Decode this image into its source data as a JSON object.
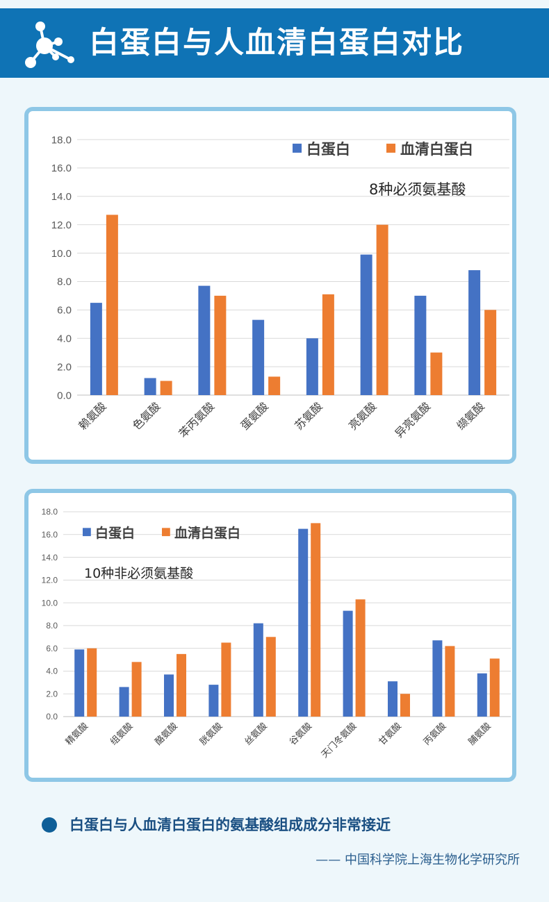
{
  "header": {
    "title": "白蛋白与人血清白蛋白对比"
  },
  "colors": {
    "series1": "#4472c4",
    "series2": "#ed7d31",
    "header_bg": "#0f73b5",
    "panel_border": "#8ec7e6"
  },
  "chart_data": [
    {
      "type": "bar",
      "annotation": "8种必须氨基酸",
      "categories": [
        "赖氨酸",
        "色氨酸",
        "苯丙氨酸",
        "蛋氨酸",
        "苏氨酸",
        "亮氨酸",
        "异亮氨酸",
        "缬氨酸"
      ],
      "series": [
        {
          "name": "白蛋白",
          "values": [
            6.5,
            1.2,
            7.7,
            5.3,
            4.0,
            9.9,
            7.0,
            8.8
          ]
        },
        {
          "name": "血清白蛋白",
          "values": [
            12.7,
            1.0,
            7.0,
            1.3,
            7.1,
            12.0,
            3.0,
            6.0
          ]
        }
      ],
      "yticks": [
        "0.0",
        "2.0",
        "4.0",
        "6.0",
        "8.0",
        "10.0",
        "12.0",
        "14.0",
        "16.0",
        "18.0"
      ],
      "ylim": [
        0,
        18
      ],
      "grid": true,
      "legend": "top-right"
    },
    {
      "type": "bar",
      "annotation": "10种非必须氨基酸",
      "categories": [
        "精氨酸",
        "组氨酸",
        "酪氨酸",
        "胱氨酸",
        "丝氨酸",
        "谷氨酸",
        "天门冬氨酸",
        "甘氨酸",
        "丙氨酸",
        "脯氨酸"
      ],
      "series": [
        {
          "name": "白蛋白",
          "values": [
            5.9,
            2.6,
            3.7,
            2.8,
            8.2,
            16.5,
            9.3,
            3.1,
            6.7,
            3.8
          ]
        },
        {
          "name": "血清白蛋白",
          "values": [
            6.0,
            4.8,
            5.5,
            6.5,
            7.0,
            17.0,
            10.3,
            2.0,
            6.2,
            5.1
          ]
        }
      ],
      "yticks": [
        "0.0",
        "2.0",
        "4.0",
        "6.0",
        "8.0",
        "10.0",
        "12.0",
        "14.0",
        "16.0",
        "18.0"
      ],
      "ylim": [
        0,
        18
      ],
      "grid": true,
      "legend": "top-left"
    }
  ],
  "footer": {
    "conclusion": "白蛋白与人血清白蛋白的氨基酸组成成分非常接近",
    "source": "—— 中国科学院上海生物化学研究所"
  }
}
